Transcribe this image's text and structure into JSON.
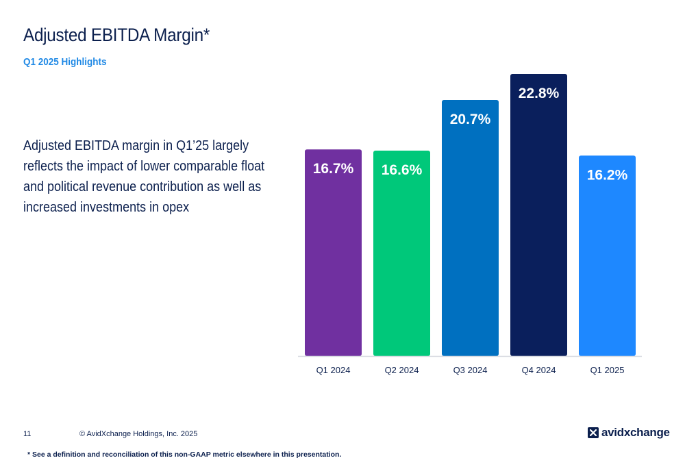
{
  "slide": {
    "title": "Adjusted EBITDA Margin*",
    "subtitle": "Q1 2025 Highlights",
    "commentary": "Adjusted EBITDA margin in Q1’25 largely reflects the impact of lower comparable float and political revenue contribution as well as increased investments in opex"
  },
  "chart_data": {
    "type": "bar",
    "categories": [
      "Q1 2024",
      "Q2 2024",
      "Q3 2024",
      "Q4 2024",
      "Q1 2025"
    ],
    "values": [
      16.7,
      16.6,
      20.7,
      22.8,
      16.2
    ],
    "labels": [
      "16.7%",
      "16.6%",
      "20.7%",
      "22.8%",
      "16.2%"
    ],
    "colors": [
      "#7030a0",
      "#00c87a",
      "#0070c0",
      "#0a1f5c",
      "#1e88ff"
    ],
    "title": "",
    "xlabel": "",
    "ylabel": "",
    "ylim": [
      0,
      22.8
    ],
    "grid": false,
    "legend": "none"
  },
  "footer": {
    "page_number": "11",
    "copyright": "© AvidXchange Holdings, Inc. 2025",
    "footnote": "* See a definition and reconciliation of this non-GAAP metric elsewhere in this presentation.",
    "logo_text": "avidxchange",
    "logo_mark": "x-logo-icon"
  }
}
